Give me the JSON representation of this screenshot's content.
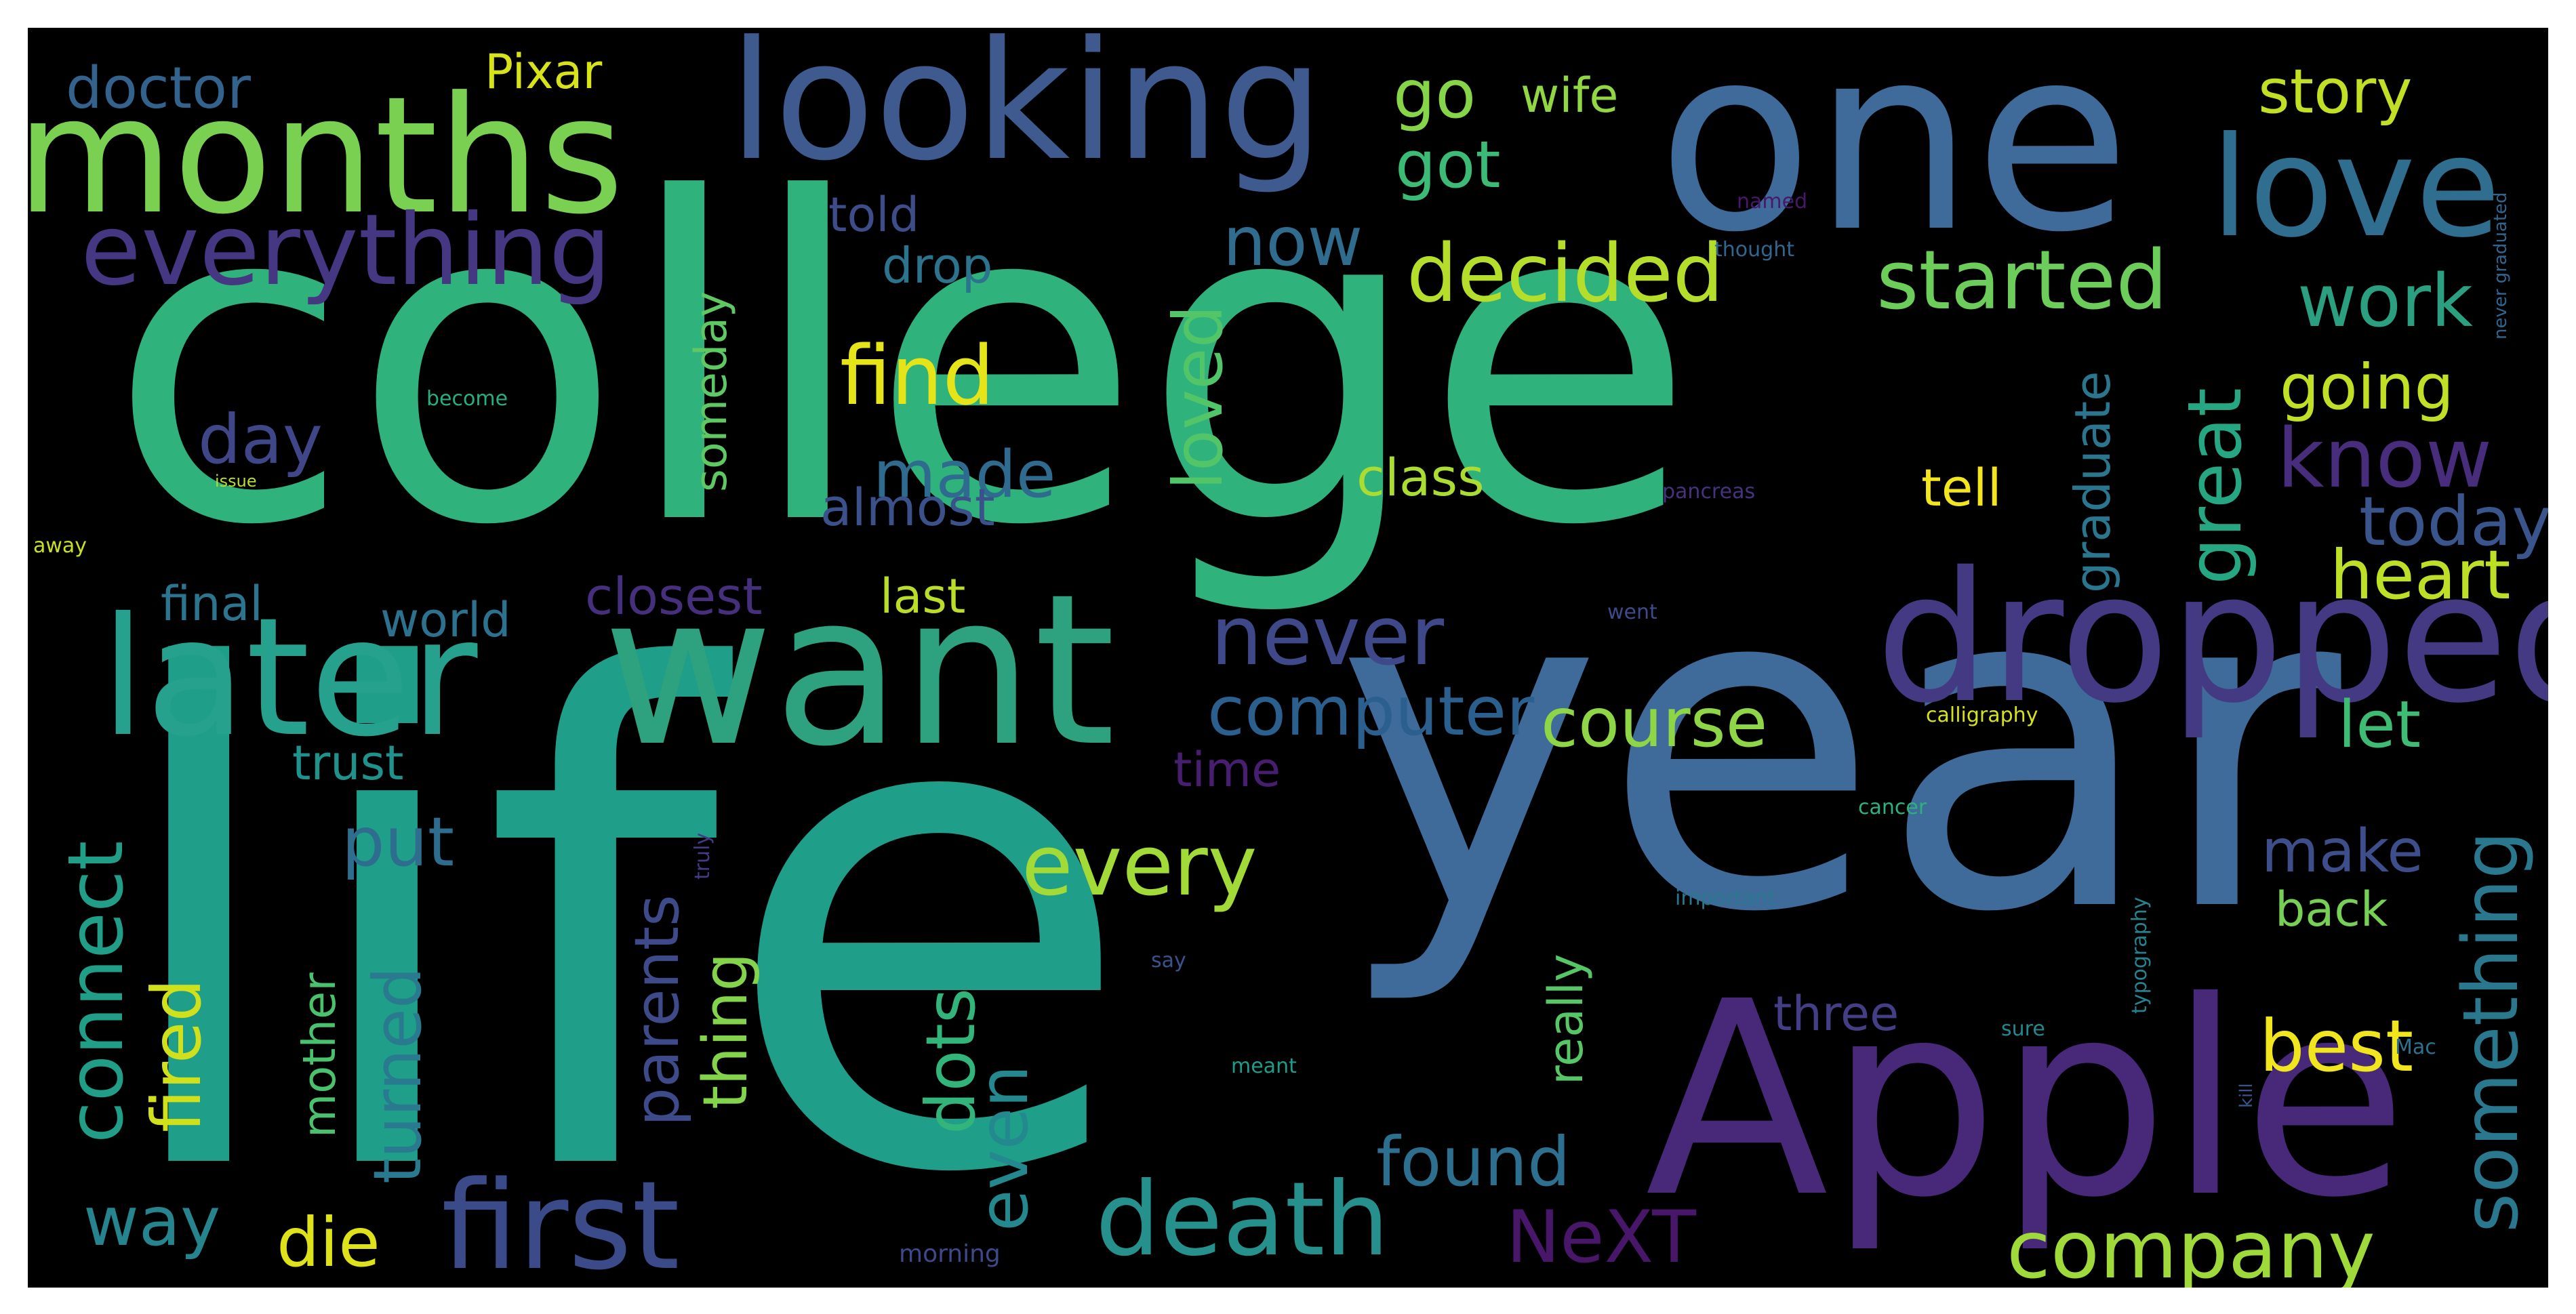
{
  "words": [
    {
      "text": "college",
      "color": "#2fb27c"
    },
    {
      "text": "life",
      "color": "#1f9e89"
    },
    {
      "text": "year",
      "color": "#3e6b9a"
    },
    {
      "text": "one",
      "color": "#3e6b9a"
    },
    {
      "text": "want",
      "color": "#2ea27f"
    },
    {
      "text": "Apple",
      "color": "#482878"
    },
    {
      "text": "dropped",
      "color": "#443a83"
    },
    {
      "text": "months",
      "color": "#7ad151"
    },
    {
      "text": "looking",
      "color": "#3e5a8f"
    },
    {
      "text": "later",
      "color": "#25a18d"
    },
    {
      "text": "love",
      "color": "#2f6e8e"
    },
    {
      "text": "first",
      "color": "#3b4b8a"
    },
    {
      "text": "everything",
      "color": "#453781"
    },
    {
      "text": "death",
      "color": "#26908d"
    },
    {
      "text": "company",
      "color": "#9fda3a"
    },
    {
      "text": "decided",
      "color": "#b5de2b"
    },
    {
      "text": "started",
      "color": "#6ccd5a"
    },
    {
      "text": "computer",
      "color": "#2b5f8d"
    },
    {
      "text": "course",
      "color": "#8ed645"
    },
    {
      "text": "never",
      "color": "#3f4889"
    },
    {
      "text": "every",
      "color": "#a2da37"
    },
    {
      "text": "found",
      "color": "#2d6f8e"
    },
    {
      "text": "connect",
      "color": "#219e87"
    },
    {
      "text": "something",
      "color": "#2a788e"
    },
    {
      "text": "heart",
      "color": "#bddf26"
    },
    {
      "text": "know",
      "color": "#472d7b"
    },
    {
      "text": "today",
      "color": "#3a548c"
    },
    {
      "text": "NeXT",
      "color": "#48176a"
    },
    {
      "text": "best",
      "color": "#f1e51d"
    },
    {
      "text": "great",
      "color": "#26a784"
    },
    {
      "text": "work",
      "color": "#2ba081"
    },
    {
      "text": "going",
      "color": "#c0df25"
    },
    {
      "text": "story",
      "color": "#c2df23"
    },
    {
      "text": "made",
      "color": "#2f6b8e"
    },
    {
      "text": "find",
      "color": "#e5e419"
    },
    {
      "text": "now",
      "color": "#2f6c8e"
    },
    {
      "text": "got",
      "color": "#3bbb75"
    },
    {
      "text": "go",
      "color": "#86d549"
    },
    {
      "text": "wife",
      "color": "#90d743"
    },
    {
      "text": "Pixar",
      "color": "#d8e219"
    },
    {
      "text": "doctor",
      "color": "#33638d"
    },
    {
      "text": "day",
      "color": "#3f4788"
    },
    {
      "text": "put",
      "color": "#2e6d8e"
    },
    {
      "text": "turned",
      "color": "#297a8e"
    },
    {
      "text": "fired",
      "color": "#d0e11c"
    },
    {
      "text": "way",
      "color": "#25848e"
    },
    {
      "text": "die",
      "color": "#dde318"
    },
    {
      "text": "parents",
      "color": "#3f4a8a"
    },
    {
      "text": "thing",
      "color": "#84d44b"
    },
    {
      "text": "mother",
      "color": "#4ac16d"
    },
    {
      "text": "dots",
      "color": "#31b57b"
    },
    {
      "text": "even",
      "color": "#23898e"
    },
    {
      "text": "loved",
      "color": "#52c569"
    },
    {
      "text": "almost",
      "color": "#3b518b"
    },
    {
      "text": "someday",
      "color": "#5ec962"
    },
    {
      "text": "drop",
      "color": "#2c738e"
    },
    {
      "text": "told",
      "color": "#3e4c8a"
    },
    {
      "text": "final",
      "color": "#2b758e"
    },
    {
      "text": "world",
      "color": "#2c728e"
    },
    {
      "text": "closest",
      "color": "#462f7c"
    },
    {
      "text": "last",
      "color": "#bade28"
    },
    {
      "text": "class",
      "color": "#aadc32"
    },
    {
      "text": "tell",
      "color": "#f4e61e"
    },
    {
      "text": "graduate",
      "color": "#2a768e"
    },
    {
      "text": "let",
      "color": "#3fbc73"
    },
    {
      "text": "make",
      "color": "#3d4e8a"
    },
    {
      "text": "back",
      "color": "#75d054"
    },
    {
      "text": "three",
      "color": "#433e85"
    },
    {
      "text": "really",
      "color": "#56c667"
    },
    {
      "text": "time",
      "color": "#481f70"
    },
    {
      "text": "trust",
      "color": "#20928c"
    },
    {
      "text": "calligraphy",
      "color": "#d5e21a"
    },
    {
      "text": "cancer",
      "color": "#2db27d"
    },
    {
      "text": "important",
      "color": "#2a778e"
    },
    {
      "text": "typography",
      "color": "#26828e"
    },
    {
      "text": "sure",
      "color": "#24878e"
    },
    {
      "text": "Mac",
      "color": "#2c718e"
    },
    {
      "text": "kill",
      "color": "#39568c"
    },
    {
      "text": "say",
      "color": "#3b528b"
    },
    {
      "text": "meant",
      "color": "#1e9b8a"
    },
    {
      "text": "morning",
      "color": "#3e4989"
    },
    {
      "text": "truly",
      "color": "#443b84"
    },
    {
      "text": "pancreas",
      "color": "#46327e"
    },
    {
      "text": "went",
      "color": "#3e4a89"
    },
    {
      "text": "become",
      "color": "#29af7f"
    },
    {
      "text": "issue",
      "color": "#b8de29"
    },
    {
      "text": "away",
      "color": "#c8e020"
    },
    {
      "text": "named",
      "color": "#48186a"
    },
    {
      "text": "thought",
      "color": "#31668e"
    },
    {
      "text": "never graduated",
      "color": "#32658e"
    }
  ]
}
